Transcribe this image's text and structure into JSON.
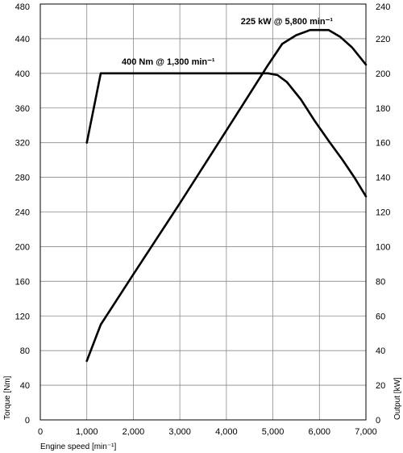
{
  "chart_data": {
    "type": "line",
    "x_range": [
      0,
      7000
    ],
    "x_ticks": [
      "0",
      "1,000",
      "2,000",
      "3,000",
      "4,000",
      "5,000",
      "6,000",
      "7,000"
    ],
    "y_left_range": [
      0,
      480
    ],
    "y_left_ticks": [
      "0",
      "40",
      "80",
      "120",
      "160",
      "200",
      "240",
      "280",
      "320",
      "360",
      "400",
      "440",
      "480"
    ],
    "y_right_range": [
      0,
      240
    ],
    "y_right_ticks": [
      "0",
      "20",
      "40",
      "60",
      "80",
      "100",
      "120",
      "140",
      "160",
      "180",
      "200",
      "220",
      "240"
    ],
    "xlabel": "Engine speed [min⁻¹]",
    "ylabel_left": "Torque [Nm]",
    "ylabel_right": "Output [kW]",
    "grid": true,
    "series": [
      {
        "axis": "left",
        "x": [
          1000,
          1300,
          4900,
          5100,
          5300,
          5600,
          5900,
          6200,
          6500,
          6750,
          7000
        ],
        "y": [
          320,
          400,
          400,
          398,
          390,
          370,
          345,
          322,
          300,
          280,
          258
        ]
      },
      {
        "axis": "right",
        "x": [
          1000,
          1300,
          2000,
          3000,
          4000,
          4900,
          5200,
          5500,
          5800,
          6200,
          6450,
          6700,
          7000
        ],
        "y": [
          34,
          55,
          84,
          125,
          167,
          205,
          217,
          222,
          225,
          225,
          221,
          215,
          205
        ]
      }
    ],
    "annotations": [
      {
        "text": "400 Nm @ 1,300 min⁻¹",
        "x": 1300,
        "y": 400,
        "axis": "left"
      },
      {
        "text": "225 kW @ 5,800 min⁻¹",
        "x": 5800,
        "y": 225,
        "axis": "right"
      }
    ]
  }
}
